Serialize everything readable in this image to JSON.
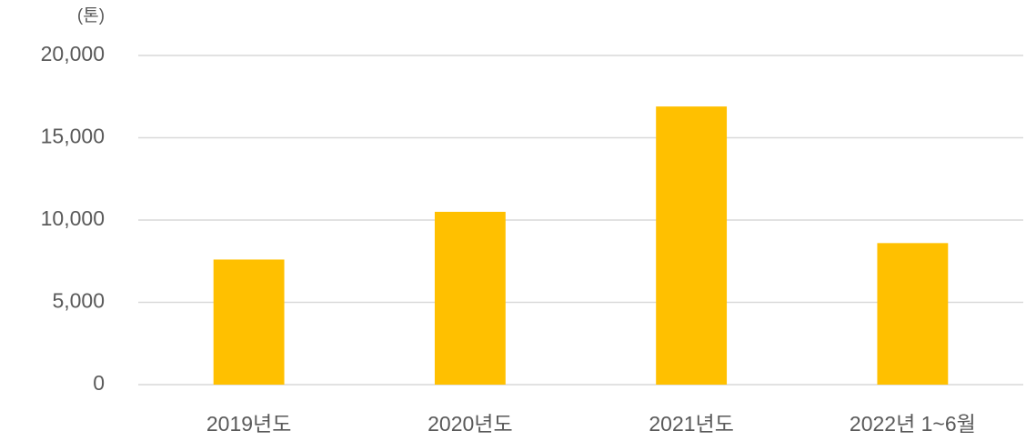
{
  "chart_data": {
    "type": "bar",
    "unit_label": "(톤)",
    "categories": [
      "2019년도",
      "2020년도",
      "2021년도",
      "2022년 1~6월"
    ],
    "values": [
      7600,
      10500,
      16900,
      8600
    ],
    "color": "#ffc000",
    "ylim": [
      0,
      20000
    ],
    "yticks": [
      0,
      {
        "value": 5000,
        "label": "5,000"
      },
      {
        "value": 10000,
        "label": "10,000"
      },
      {
        "value": 15000,
        "label": "15,000"
      },
      {
        "value": 20000,
        "label": "20,000"
      }
    ],
    "grid": true
  }
}
